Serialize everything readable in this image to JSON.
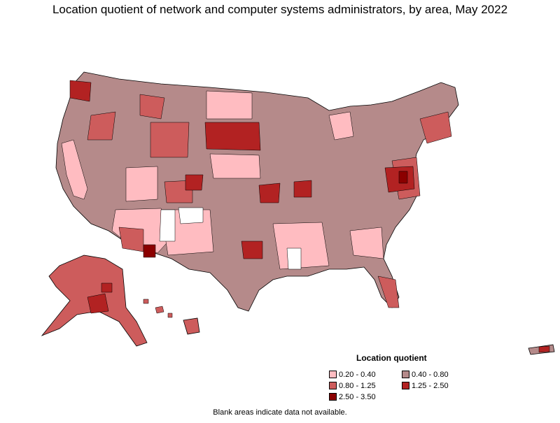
{
  "title": "Location quotient of network and computer systems administrators, by area, May 2022",
  "legend": {
    "title": "Location quotient",
    "items": [
      {
        "label": "0.20 - 0.40",
        "color": "#ffbcc1"
      },
      {
        "label": "0.40 - 0.80",
        "color": "#b58a8a"
      },
      {
        "label": "0.80 - 1.25",
        "color": "#cd5c5c"
      },
      {
        "label": "1.25 - 2.50",
        "color": "#b22222"
      },
      {
        "label": "2.50 - 3.50",
        "color": "#8b0000"
      }
    ]
  },
  "note": "Blank areas indicate data not available.",
  "colors": {
    "low": "#ffbcc1",
    "mid_low": "#b58a8a",
    "mid": "#cd5c5c",
    "high": "#b22222",
    "highest": "#8b0000",
    "blank": "#ffffff",
    "border": "#000000"
  }
}
